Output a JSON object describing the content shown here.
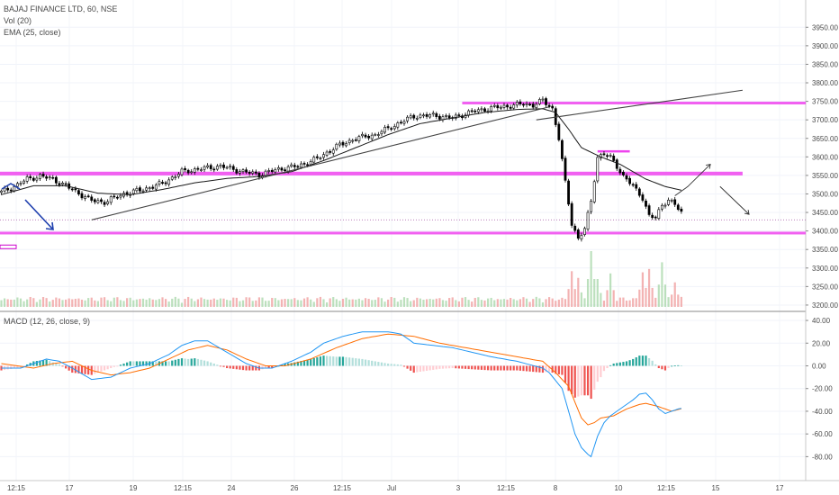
{
  "symbol_title": "BAJAJ FINANCE LTD, 60, NSE",
  "indicators": {
    "volume": "Vol (20)",
    "ema": "EMA (25, close)",
    "macd": "MACD (12, 26, close, 9)"
  },
  "colors": {
    "up": "#ffffff",
    "down": "#000000",
    "wick": "#000000",
    "ema": "#1a1a1a",
    "zone": "#ee44ee",
    "zone_line": "#cc00cc",
    "macd_line": "#2196f3",
    "signal_line": "#ff6d00",
    "hist_up_strong": "#26a69a",
    "hist_up_weak": "#b2dfdb",
    "hist_down_strong": "#ef5350",
    "hist_down_weak": "#ffcdd2",
    "vol_up": "#a5d6a7",
    "vol_down": "#ef9a9a",
    "blue_arrow": "#1e3fae"
  },
  "x_axis": {
    "labels": [
      "12:15",
      "17",
      "19",
      "12:15",
      "24",
      "26",
      "12:15",
      "Jul",
      "3",
      "12:15",
      "8",
      "10",
      "12:15",
      "15",
      "17"
    ]
  },
  "chart_data": [
    {
      "type": "candlestick",
      "title": "BAJAJ FINANCE LTD, 60, NSE",
      "y_ticks": [
        "3950.00",
        "3900.00",
        "3850.00",
        "3800.00",
        "3750.00",
        "3700.00",
        "3650.00",
        "3600.00",
        "3550.00",
        "3500.00",
        "3450.00",
        "3400.00",
        "3350.00",
        "3300.00",
        "3250.00",
        "3200.00"
      ],
      "ylim": [
        3195,
        3975
      ],
      "close_waypoints": [
        [
          0,
          3505
        ],
        [
          4,
          3520
        ],
        [
          8,
          3540
        ],
        [
          12,
          3548
        ],
        [
          16,
          3540
        ],
        [
          22,
          3512
        ],
        [
          28,
          3482
        ],
        [
          32,
          3478
        ],
        [
          38,
          3500
        ],
        [
          44,
          3512
        ],
        [
          50,
          3528
        ],
        [
          56,
          3560
        ],
        [
          62,
          3568
        ],
        [
          68,
          3575
        ],
        [
          74,
          3562
        ],
        [
          80,
          3552
        ],
        [
          86,
          3567
        ],
        [
          92,
          3575
        ],
        [
          98,
          3595
        ],
        [
          104,
          3628
        ],
        [
          110,
          3650
        ],
        [
          116,
          3660
        ],
        [
          122,
          3685
        ],
        [
          128,
          3710
        ],
        [
          134,
          3712
        ],
        [
          140,
          3705
        ],
        [
          146,
          3722
        ],
        [
          152,
          3732
        ],
        [
          158,
          3738
        ],
        [
          162,
          3743
        ],
        [
          165,
          3740
        ],
        [
          168,
          3752
        ],
        [
          171,
          3730
        ],
        [
          173,
          3650
        ],
        [
          175,
          3530
        ],
        [
          177,
          3420
        ],
        [
          179,
          3380
        ],
        [
          181,
          3405
        ],
        [
          183,
          3480
        ],
        [
          185,
          3600
        ],
        [
          187,
          3608
        ],
        [
          189,
          3598
        ],
        [
          191,
          3575
        ],
        [
          193,
          3548
        ],
        [
          195,
          3530
        ],
        [
          197,
          3510
        ],
        [
          199,
          3490
        ],
        [
          201,
          3440
        ],
        [
          203,
          3435
        ],
        [
          205,
          3470
        ],
        [
          207,
          3485
        ],
        [
          209,
          3470
        ],
        [
          211,
          3450
        ]
      ],
      "ema_waypoints": [
        [
          0,
          3498
        ],
        [
          10,
          3522
        ],
        [
          20,
          3522
        ],
        [
          30,
          3502
        ],
        [
          40,
          3498
        ],
        [
          50,
          3512
        ],
        [
          60,
          3530
        ],
        [
          70,
          3542
        ],
        [
          80,
          3547
        ],
        [
          90,
          3560
        ],
        [
          100,
          3590
        ],
        [
          110,
          3625
        ],
        [
          120,
          3660
        ],
        [
          130,
          3690
        ],
        [
          140,
          3705
        ],
        [
          150,
          3720
        ],
        [
          160,
          3728
        ],
        [
          168,
          3730
        ],
        [
          172,
          3720
        ],
        [
          176,
          3675
        ],
        [
          180,
          3625
        ],
        [
          186,
          3600
        ],
        [
          192,
          3580
        ],
        [
          200,
          3540
        ],
        [
          206,
          3520
        ],
        [
          211,
          3510
        ]
      ],
      "volume_max": 5,
      "volume_peaks": [
        [
          177,
          3.2
        ],
        [
          179,
          2.6
        ],
        [
          183,
          5.0
        ],
        [
          185,
          2.5
        ],
        [
          189,
          3.0
        ],
        [
          199,
          3.1
        ],
        [
          201,
          3.4
        ],
        [
          205,
          4.0
        ],
        [
          209,
          2.2
        ]
      ],
      "horizontal_zones": [
        [
          3749,
          3743
        ],
        [
          3560,
          3550
        ],
        [
          3398,
          3392
        ]
      ],
      "short_zones": [
        {
          "x": [
            185,
            195
          ],
          "y": 3618
        }
      ],
      "trendlines": [
        {
          "from": [
            28,
            3430
          ],
          "to": [
            170,
            3735
          ]
        },
        {
          "from": [
            166,
            3700
          ],
          "to": [
            230,
            3780
          ]
        }
      ],
      "projections": [
        {
          "from": [
            209,
            3495
          ],
          "to": [
            213,
            3520
          ],
          "then": [
            220,
            3580
          ]
        },
        {
          "from": [
            223,
            3520
          ],
          "to": [
            232,
            3445
          ]
        }
      ],
      "dotted_level": 3430
    },
    {
      "type": "line",
      "title": "MACD (12, 26, close, 9)",
      "y_ticks": [
        "40.00",
        "20.00",
        "0.00",
        "-20.00",
        "-40.00",
        "-60.00",
        "-80.00"
      ],
      "ylim": [
        -90,
        44
      ],
      "macd_waypoints": [
        [
          0,
          -2
        ],
        [
          6,
          -2
        ],
        [
          10,
          2
        ],
        [
          14,
          6
        ],
        [
          18,
          4
        ],
        [
          22,
          -2
        ],
        [
          28,
          -12
        ],
        [
          34,
          -10
        ],
        [
          40,
          -2
        ],
        [
          46,
          2
        ],
        [
          52,
          10
        ],
        [
          56,
          18
        ],
        [
          60,
          22
        ],
        [
          64,
          22
        ],
        [
          70,
          12
        ],
        [
          76,
          2
        ],
        [
          80,
          -2
        ],
        [
          84,
          -2
        ],
        [
          90,
          4
        ],
        [
          96,
          12
        ],
        [
          100,
          20
        ],
        [
          106,
          26
        ],
        [
          112,
          30
        ],
        [
          120,
          30
        ],
        [
          124,
          28
        ],
        [
          128,
          20
        ],
        [
          134,
          18
        ],
        [
          140,
          16
        ],
        [
          146,
          12
        ],
        [
          152,
          8
        ],
        [
          160,
          4
        ],
        [
          168,
          -2
        ],
        [
          170,
          -6
        ],
        [
          174,
          -20
        ],
        [
          176,
          -40
        ],
        [
          178,
          -60
        ],
        [
          180,
          -72
        ],
        [
          182,
          -78
        ],
        [
          183,
          -80
        ],
        [
          185,
          -62
        ],
        [
          187,
          -50
        ],
        [
          189,
          -44
        ],
        [
          192,
          -38
        ],
        [
          196,
          -30
        ],
        [
          198,
          -25
        ],
        [
          200,
          -24
        ],
        [
          202,
          -30
        ],
        [
          204,
          -38
        ],
        [
          206,
          -42
        ],
        [
          208,
          -40
        ],
        [
          210,
          -38
        ],
        [
          212,
          -37
        ]
      ],
      "signal_waypoints": [
        [
          0,
          2
        ],
        [
          10,
          -2
        ],
        [
          16,
          2
        ],
        [
          22,
          4
        ],
        [
          28,
          -4
        ],
        [
          34,
          -8
        ],
        [
          40,
          -6
        ],
        [
          46,
          -2
        ],
        [
          52,
          6
        ],
        [
          58,
          14
        ],
        [
          64,
          18
        ],
        [
          70,
          14
        ],
        [
          76,
          6
        ],
        [
          82,
          0
        ],
        [
          88,
          0
        ],
        [
          96,
          6
        ],
        [
          104,
          16
        ],
        [
          112,
          24
        ],
        [
          120,
          28
        ],
        [
          128,
          26
        ],
        [
          136,
          20
        ],
        [
          144,
          16
        ],
        [
          152,
          12
        ],
        [
          160,
          8
        ],
        [
          168,
          4
        ],
        [
          172,
          -6
        ],
        [
          176,
          -18
        ],
        [
          178,
          -32
        ],
        [
          180,
          -46
        ],
        [
          182,
          -52
        ],
        [
          184,
          -50
        ],
        [
          186,
          -46
        ],
        [
          190,
          -44
        ],
        [
          194,
          -38
        ],
        [
          198,
          -34
        ],
        [
          200,
          -33
        ],
        [
          204,
          -36
        ],
        [
          208,
          -40
        ],
        [
          212,
          -37
        ]
      ]
    }
  ]
}
